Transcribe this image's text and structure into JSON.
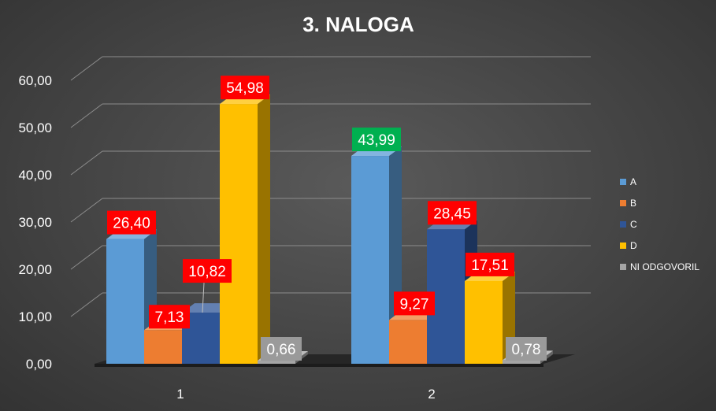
{
  "chart_data": {
    "type": "bar",
    "title": "3. NALOGA",
    "categories": [
      "1",
      "2"
    ],
    "series": [
      {
        "name": "A",
        "values": [
          26.4,
          43.99
        ],
        "color": "#5b9bd5",
        "labels": [
          "26,40",
          "43,99"
        ],
        "label_bg": [
          "#ff0000",
          "#00b050"
        ]
      },
      {
        "name": "B",
        "values": [
          7.13,
          9.27
        ],
        "color": "#ed7d31",
        "labels": [
          "7,13",
          "9,27"
        ],
        "label_bg": [
          "#ff0000",
          "#ff0000"
        ]
      },
      {
        "name": "C",
        "values": [
          10.82,
          28.45
        ],
        "color": "#2f5597",
        "labels": [
          "10,82",
          "28,45"
        ],
        "label_bg": [
          "#ff0000",
          "#ff0000"
        ]
      },
      {
        "name": "D",
        "values": [
          54.98,
          17.51
        ],
        "color": "#ffc000",
        "labels": [
          "54,98",
          "17,51"
        ],
        "label_bg": [
          "#ff0000",
          "#ff0000"
        ]
      },
      {
        "name": "NI ODGOVORIL",
        "values": [
          0.66,
          0.78
        ],
        "color": "#a5a5a5",
        "labels": [
          "0,66",
          "0,78"
        ],
        "label_bg": [
          "#9a9a9a",
          "#9a9a9a"
        ]
      }
    ],
    "ylim": [
      0,
      60
    ],
    "yticks": [
      "0,00",
      "10,00",
      "20,00",
      "30,00",
      "40,00",
      "50,00",
      "60,00"
    ],
    "grid": true,
    "legend_position": "right",
    "perspective": "3d"
  }
}
